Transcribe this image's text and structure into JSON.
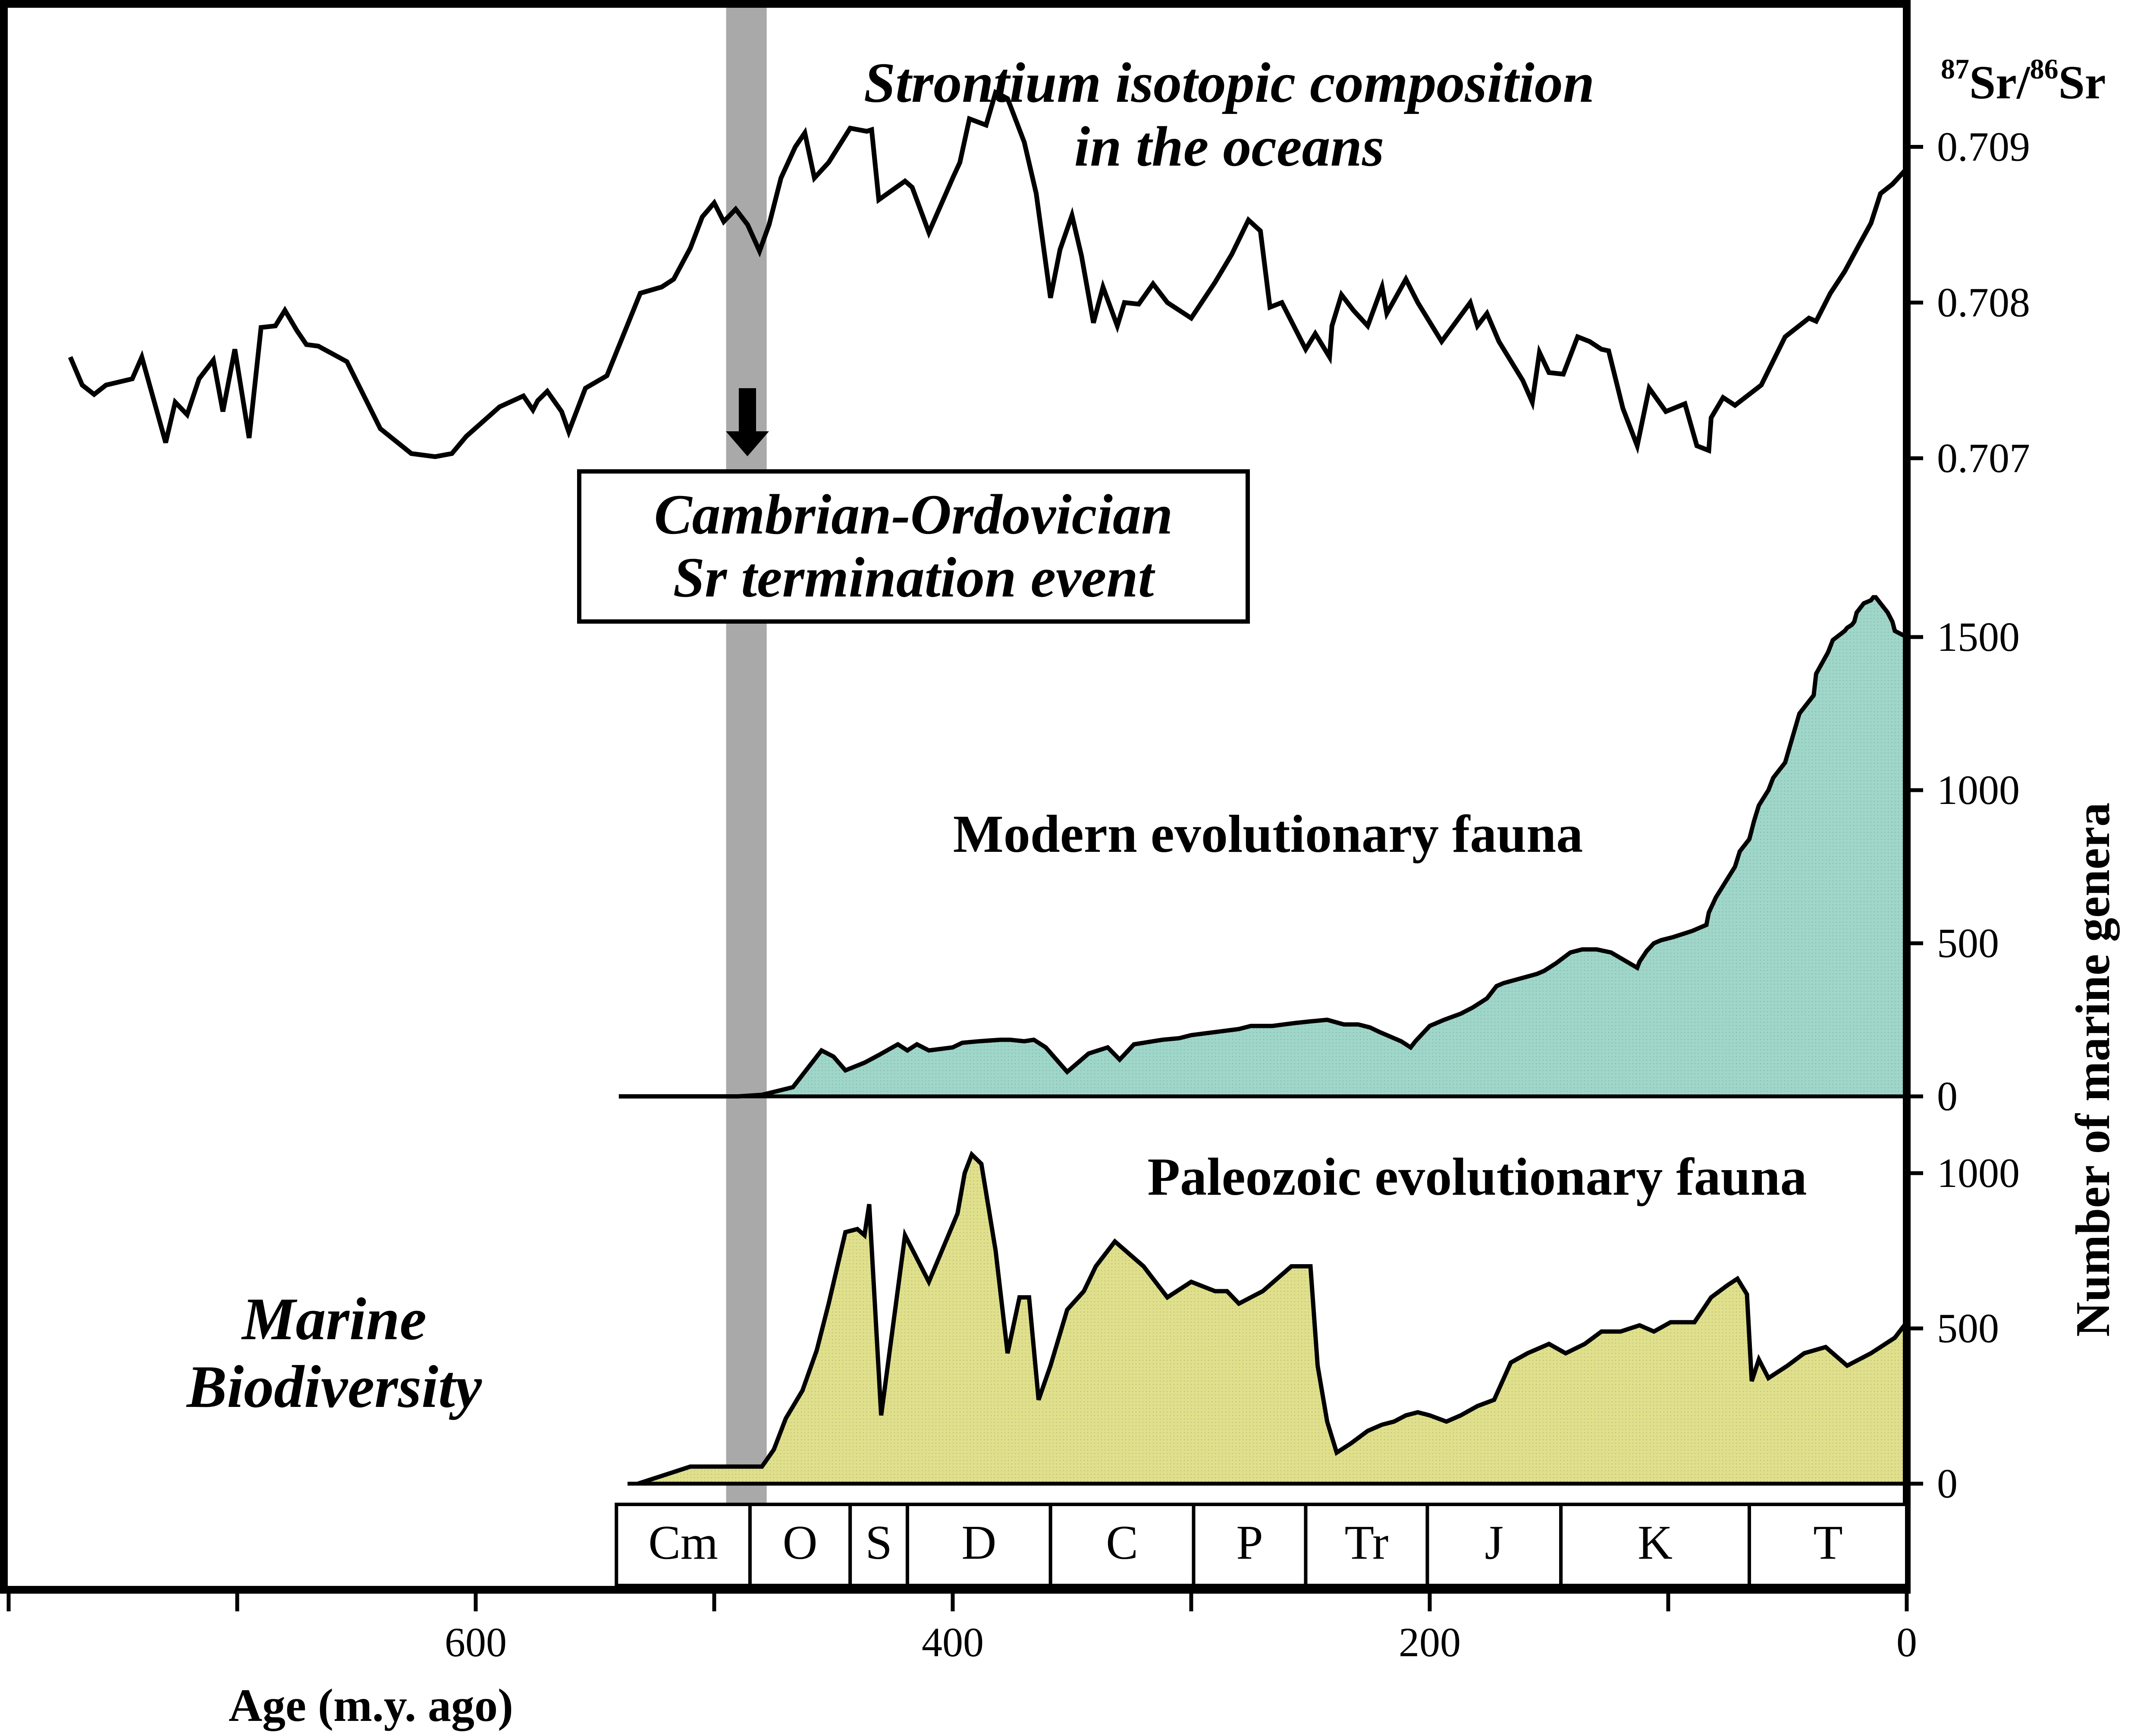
{
  "chart_data": {
    "type": "area",
    "x_axis": {
      "label": "Age (m.y. ago)",
      "reversed": true,
      "range": [
        780,
        0
      ],
      "ticks": [
        600,
        400,
        200,
        0
      ]
    },
    "periods": [
      {
        "label": "Cm",
        "start": 541,
        "end": 485
      },
      {
        "label": "O",
        "start": 485,
        "end": 443
      },
      {
        "label": "S",
        "start": 443,
        "end": 419
      },
      {
        "label": "D",
        "start": 419,
        "end": 359
      },
      {
        "label": "C",
        "start": 359,
        "end": 299
      },
      {
        "label": "P",
        "start": 299,
        "end": 252
      },
      {
        "label": "Tr",
        "start": 252,
        "end": 201
      },
      {
        "label": "J",
        "start": 201,
        "end": 145
      },
      {
        "label": "K",
        "start": 145,
        "end": 66
      },
      {
        "label": "T",
        "start": 66,
        "end": 0
      }
    ],
    "event_band": {
      "start": 495,
      "end": 478,
      "color": "#a9a9a9"
    },
    "event_label": [
      "Cambrian-Ordovician",
      "Sr termination event"
    ],
    "strontium": {
      "title": [
        "Strontium isotopic composition",
        "in the oceans"
      ],
      "axis_label": {
        "sup1": "87",
        "base1": "Sr/",
        "sup2": "86",
        "base2": "Sr"
      },
      "ylim": [
        0.7054,
        0.7095
      ],
      "ticks": [
        {
          "value": 0.707,
          "label": "0.707"
        },
        {
          "value": 0.708,
          "label": "0.708"
        },
        {
          "value": 0.709,
          "label": "0.709"
        }
      ],
      "x": [
        770,
        765,
        760,
        755,
        744,
        740,
        730,
        726,
        721,
        716,
        710,
        706,
        701,
        695,
        690,
        684,
        680,
        675,
        671,
        666,
        654,
        640,
        627,
        617,
        610,
        604,
        590,
        580,
        576,
        574,
        570,
        564,
        561,
        554,
        545,
        531,
        522,
        517,
        510,
        505,
        500,
        496,
        491,
        486,
        481,
        477,
        472,
        466,
        462,
        458,
        452,
        443,
        436,
        434,
        431,
        420,
        417,
        410,
        400,
        397,
        393,
        386,
        382,
        377,
        370,
        365,
        359,
        355,
        350,
        346,
        341,
        337,
        331,
        328,
        322,
        316,
        310,
        300,
        290,
        283,
        276,
        271,
        267,
        262,
        252,
        248,
        242,
        241,
        237,
        232,
        226,
        220,
        218,
        210,
        205,
        195,
        183,
        180,
        176,
        171,
        161,
        157,
        154,
        150,
        144,
        140,
        138,
        133,
        128,
        125,
        119,
        113,
        108,
        101,
        93,
        88,
        83,
        82,
        77,
        72,
        61,
        51,
        41,
        38,
        32,
        26,
        20,
        15,
        11,
        6,
        0
      ],
      "y": [
        0.70765,
        0.70747,
        0.70741,
        0.70747,
        0.70751,
        0.70765,
        0.7071,
        0.70736,
        0.70728,
        0.70751,
        0.70763,
        0.7073,
        0.7077,
        0.70713,
        0.70784,
        0.70785,
        0.70795,
        0.70782,
        0.70773,
        0.70772,
        0.70762,
        0.70719,
        0.70703,
        0.70701,
        0.70703,
        0.70714,
        0.70733,
        0.7074,
        0.70731,
        0.70737,
        0.70743,
        0.7073,
        0.70717,
        0.70745,
        0.70753,
        0.70806,
        0.7081,
        0.70815,
        0.70835,
        0.70855,
        0.70864,
        0.70852,
        0.7086,
        0.7085,
        0.70833,
        0.7085,
        0.7088,
        0.709,
        0.70909,
        0.7088,
        0.7089,
        0.70912,
        0.7091,
        0.70911,
        0.70866,
        0.70878,
        0.70874,
        0.70845,
        0.7088,
        0.7089,
        0.70918,
        0.70914,
        0.70935,
        0.70931,
        0.70903,
        0.7087,
        0.70803,
        0.70834,
        0.70856,
        0.7083,
        0.70787,
        0.7081,
        0.70785,
        0.708,
        0.70799,
        0.70812,
        0.708,
        0.7079,
        0.70813,
        0.70831,
        0.70853,
        0.70846,
        0.70797,
        0.708,
        0.7077,
        0.7078,
        0.70765,
        0.70785,
        0.70805,
        0.70795,
        0.70785,
        0.7081,
        0.70793,
        0.70815,
        0.708,
        0.70775,
        0.708,
        0.70785,
        0.70793,
        0.70775,
        0.7075,
        0.70736,
        0.70768,
        0.70755,
        0.70754,
        0.7077,
        0.70778,
        0.70775,
        0.7077,
        0.70769,
        0.70732,
        0.70708,
        0.70745,
        0.7073,
        0.70735,
        0.70708,
        0.70705,
        0.70726,
        0.70739,
        0.70734,
        0.70747,
        0.70778,
        0.7079,
        0.70788,
        0.70806,
        0.7082,
        0.70837,
        0.70851,
        0.7087,
        0.70876,
        0.70886
      ]
    },
    "modern_fauna": {
      "label": "Modern evolutionary fauna",
      "color": "#9fd6ca",
      "ylim": [
        0,
        1650
      ],
      "ticks": [
        0,
        500,
        1000,
        1500
      ],
      "x": [
        540,
        490,
        480,
        467,
        455,
        450,
        445,
        437,
        431,
        423,
        419,
        415,
        410,
        400,
        396,
        389,
        380,
        376,
        370,
        366,
        361,
        352,
        343,
        335,
        330,
        324,
        320,
        316,
        312,
        305,
        300,
        290,
        280,
        275,
        266,
        256,
        250,
        243,
        236,
        230,
        225,
        221,
        215,
        212,
        208,
        206,
        200,
        194,
        187,
        182,
        176,
        172,
        169,
        162,
        155,
        152,
        147,
        141,
        136,
        130,
        124,
        113,
        112,
        109,
        106,
        103,
        98,
        90,
        84,
        83,
        80,
        72,
        70,
        66,
        64,
        62,
        58,
        56,
        51,
        45,
        39,
        38,
        33,
        31,
        26,
        25,
        23,
        22,
        21,
        19,
        18,
        15,
        14,
        13,
        12,
        10,
        8,
        6,
        5,
        0
      ],
      "y": [
        0,
        0,
        5,
        30,
        150,
        130,
        85,
        110,
        135,
        170,
        150,
        170,
        150,
        160,
        175,
        180,
        185,
        185,
        180,
        185,
        160,
        80,
        140,
        160,
        120,
        170,
        175,
        180,
        185,
        190,
        200,
        210,
        220,
        230,
        230,
        240,
        245,
        250,
        235,
        235,
        225,
        210,
        190,
        180,
        160,
        180,
        230,
        250,
        270,
        290,
        320,
        360,
        370,
        385,
        400,
        410,
        435,
        470,
        480,
        480,
        470,
        420,
        440,
        475,
        500,
        510,
        520,
        540,
        560,
        600,
        650,
        750,
        800,
        840,
        900,
        950,
        1000,
        1040,
        1090,
        1250,
        1310,
        1380,
        1450,
        1490,
        1520,
        1530,
        1540,
        1550,
        1580,
        1600,
        1610,
        1620,
        1630,
        1630,
        1620,
        1600,
        1580,
        1550,
        1520,
        1500
      ]
    },
    "paleozoic_fauna": {
      "label": "Paleozoic evolutionary fauna",
      "color": "#e0e08c",
      "ylim": [
        0,
        1100
      ],
      "ticks": [
        0,
        500,
        1000
      ],
      "x": [
        532,
        510,
        500,
        490,
        480,
        475,
        470,
        463,
        457,
        452,
        445,
        440,
        437,
        435,
        430,
        420,
        410,
        398,
        395,
        392,
        388,
        382,
        377,
        372,
        368,
        364,
        359,
        352,
        345,
        340,
        332,
        320,
        310,
        300,
        290,
        285,
        280,
        270,
        258,
        250,
        247,
        243,
        239,
        233,
        226,
        220,
        215,
        210,
        205,
        200,
        193,
        187,
        180,
        173,
        166,
        159,
        150,
        143,
        135,
        128,
        120,
        112,
        106,
        99,
        89,
        82,
        75,
        71,
        67,
        65,
        62,
        58,
        50,
        43,
        34,
        25,
        15,
        5,
        0
      ],
      "y": [
        0,
        55,
        55,
        55,
        55,
        110,
        210,
        300,
        430,
        580,
        810,
        820,
        800,
        900,
        220,
        800,
        650,
        870,
        1000,
        1060,
        1030,
        750,
        420,
        600,
        600,
        270,
        380,
        560,
        620,
        700,
        780,
        700,
        600,
        650,
        620,
        620,
        580,
        620,
        700,
        700,
        380,
        200,
        100,
        130,
        170,
        190,
        200,
        220,
        230,
        220,
        200,
        220,
        250,
        270,
        390,
        420,
        450,
        420,
        450,
        490,
        490,
        510,
        490,
        520,
        520,
        600,
        640,
        660,
        610,
        330,
        400,
        340,
        380,
        420,
        440,
        380,
        420,
        470,
        520
      ]
    },
    "genera_axis_label": "Number of marine genera",
    "biodiversity_label": [
      "Marine",
      "Biodiversity"
    ]
  }
}
